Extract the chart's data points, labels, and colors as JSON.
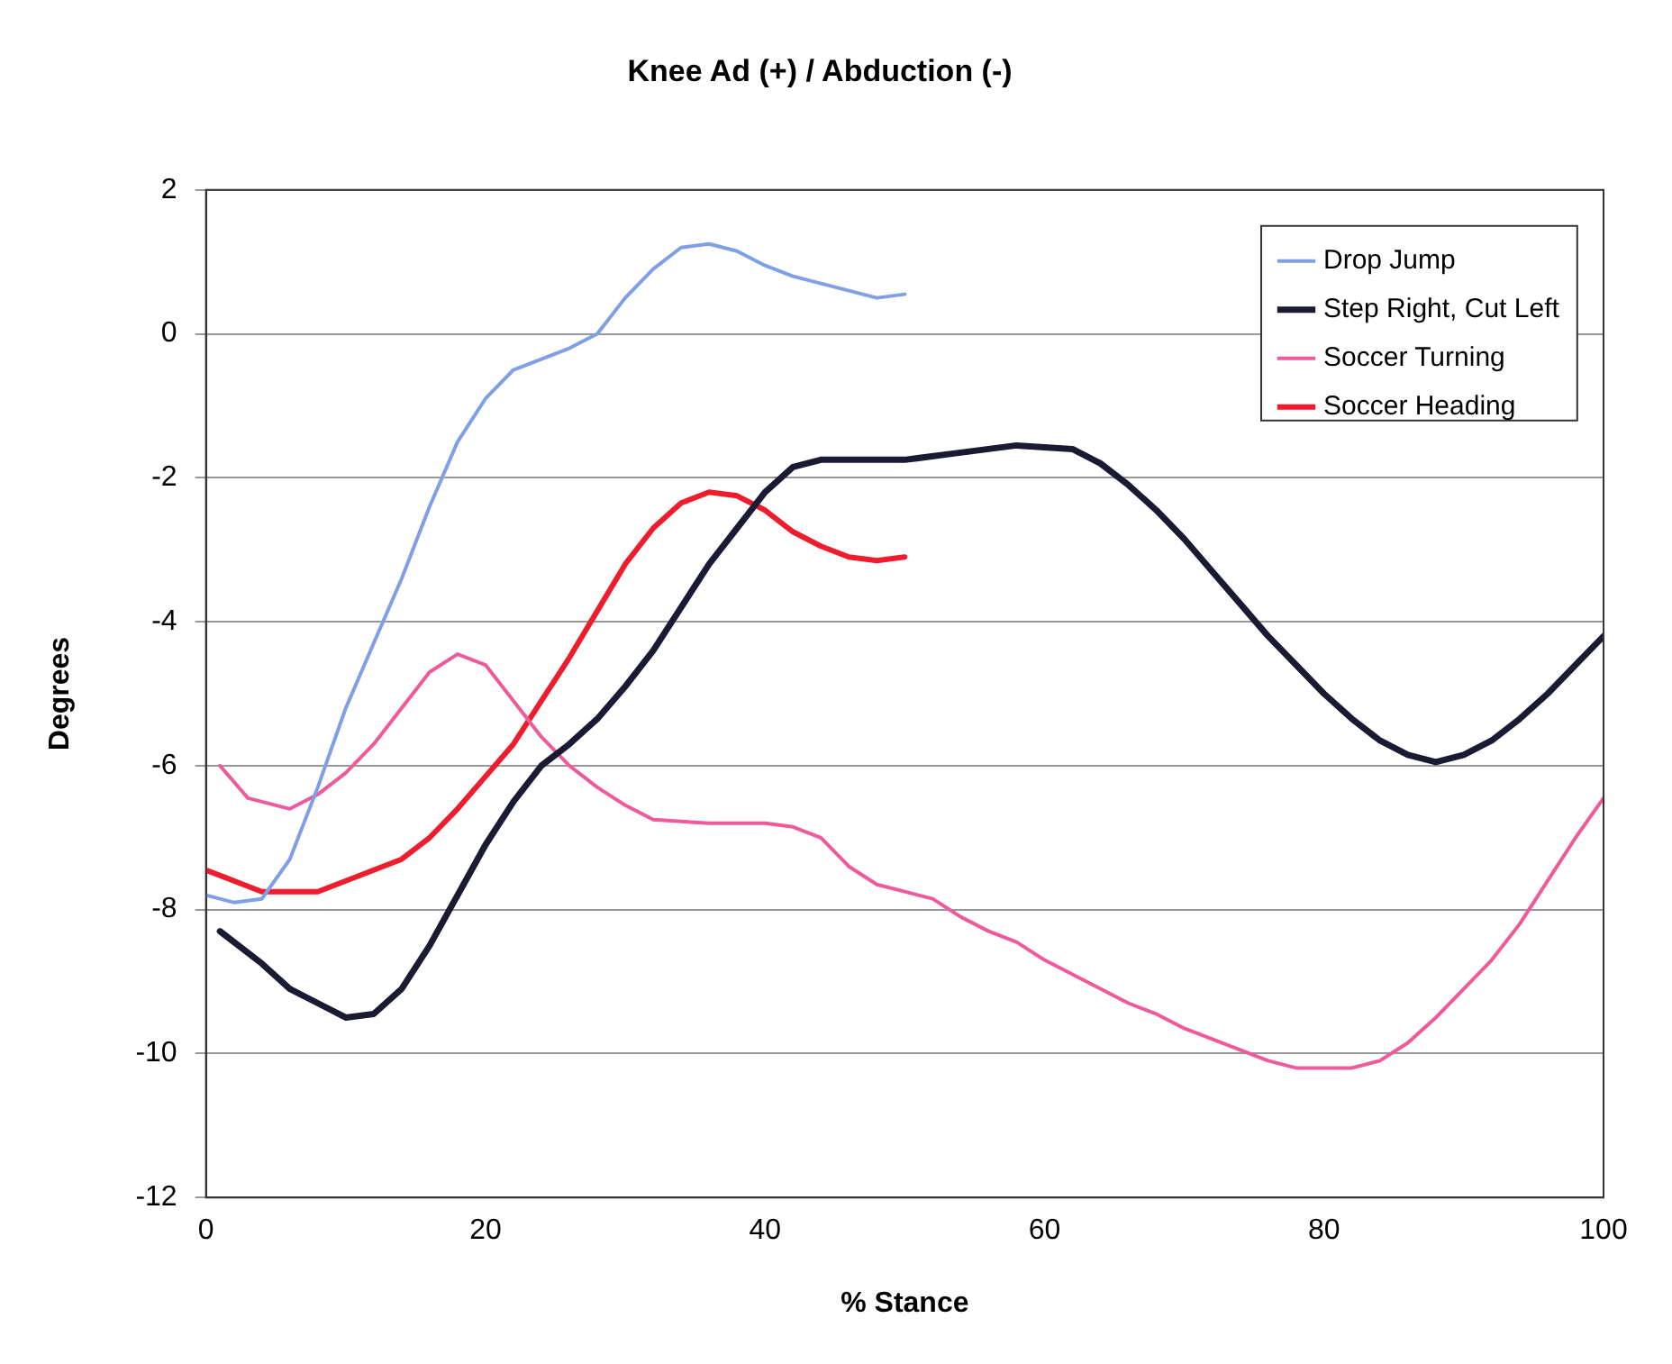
{
  "chart_data": {
    "type": "line",
    "title": "Knee Ad (+) / Abduction (-)",
    "xlabel": "% Stance",
    "ylabel": "Degrees",
    "xlim": [
      0,
      100
    ],
    "xticks": [
      0,
      20,
      40,
      60,
      80,
      100
    ],
    "ylim": [
      -12,
      2
    ],
    "yticks": [
      -12,
      -10,
      -8,
      -6,
      -4,
      -2,
      0,
      2
    ],
    "grid": "y",
    "legend": "top right",
    "marker": "none",
    "line_style": "solid",
    "series": [
      {
        "name": "Drop Jump",
        "color": "#7f9fe6",
        "x": [
          0,
          2,
          4,
          6,
          8,
          10,
          12,
          14,
          16,
          18,
          20,
          22,
          24,
          26,
          28,
          30,
          32,
          34,
          36,
          38,
          40,
          42,
          44,
          46,
          48,
          50
        ],
        "values": [
          -7.8,
          -7.9,
          -7.85,
          -7.3,
          -6.3,
          -5.2,
          -4.3,
          -3.4,
          -2.4,
          -1.5,
          -0.9,
          -0.5,
          -0.35,
          -0.2,
          0,
          0.5,
          0.9,
          1.2,
          1.25,
          1.15,
          0.95,
          0.8,
          0.7,
          0.6,
          0.5,
          0.55
        ]
      },
      {
        "name": "Step Right, Cut Left",
        "color": "#1a1a33",
        "x": [
          1,
          4,
          6,
          8,
          10,
          12,
          14,
          16,
          18,
          20,
          22,
          24,
          26,
          28,
          30,
          32,
          34,
          36,
          38,
          40,
          42,
          44,
          50,
          54,
          58,
          62,
          64,
          66,
          68,
          70,
          72,
          74,
          76,
          78,
          80,
          82,
          84,
          86,
          88,
          90,
          92,
          94,
          96,
          98,
          100
        ],
        "values": [
          -8.3,
          -8.75,
          -9.1,
          -9.3,
          -9.5,
          -9.45,
          -9.1,
          -8.5,
          -7.8,
          -7.1,
          -6.5,
          -6.0,
          -5.7,
          -5.35,
          -4.9,
          -4.4,
          -3.8,
          -3.2,
          -2.7,
          -2.2,
          -1.85,
          -1.75,
          -1.75,
          -1.65,
          -1.55,
          -1.6,
          -1.8,
          -2.1,
          -2.45,
          -2.85,
          -3.3,
          -3.75,
          -4.2,
          -4.6,
          -5.0,
          -5.35,
          -5.65,
          -5.85,
          -5.95,
          -5.85,
          -5.65,
          -5.35,
          -5.0,
          -4.6,
          -4.2
        ]
      },
      {
        "name": "Soccer Turning",
        "color": "#ee5a9a",
        "x": [
          1,
          3,
          6,
          8,
          10,
          12,
          14,
          16,
          18,
          20,
          22,
          24,
          26,
          28,
          30,
          32,
          36,
          40,
          42,
          44,
          46,
          48,
          50,
          52,
          54,
          56,
          58,
          60,
          62,
          64,
          66,
          68,
          70,
          72,
          74,
          76,
          78,
          82,
          84,
          86,
          88,
          90,
          92,
          94,
          96,
          98,
          100
        ],
        "values": [
          -6.0,
          -6.45,
          -6.6,
          -6.4,
          -6.1,
          -5.7,
          -5.2,
          -4.7,
          -4.45,
          -4.6,
          -5.1,
          -5.6,
          -6.0,
          -6.3,
          -6.55,
          -6.75,
          -6.8,
          -6.8,
          -6.85,
          -7.0,
          -7.4,
          -7.65,
          -7.75,
          -7.85,
          -8.1,
          -8.3,
          -8.45,
          -8.7,
          -8.9,
          -9.1,
          -9.3,
          -9.45,
          -9.65,
          -9.8,
          -9.95,
          -10.1,
          -10.2,
          -10.2,
          -10.1,
          -9.85,
          -9.5,
          -9.1,
          -8.7,
          -8.2,
          -7.6,
          -7.0,
          -6.45
        ]
      },
      {
        "name": "Soccer Heading",
        "color": "#ee1c2c",
        "x": [
          0,
          2,
          4,
          8,
          10,
          12,
          14,
          16,
          18,
          20,
          22,
          24,
          26,
          28,
          30,
          32,
          34,
          36,
          38,
          40,
          42,
          44,
          46,
          48,
          50
        ],
        "values": [
          -7.45,
          -7.6,
          -7.75,
          -7.75,
          -7.6,
          -7.45,
          -7.3,
          -7.0,
          -6.6,
          -6.15,
          -5.7,
          -5.1,
          -4.5,
          -3.85,
          -3.2,
          -2.7,
          -2.35,
          -2.2,
          -2.25,
          -2.45,
          -2.75,
          -2.95,
          -3.1,
          -3.15,
          -3.1
        ]
      }
    ]
  }
}
